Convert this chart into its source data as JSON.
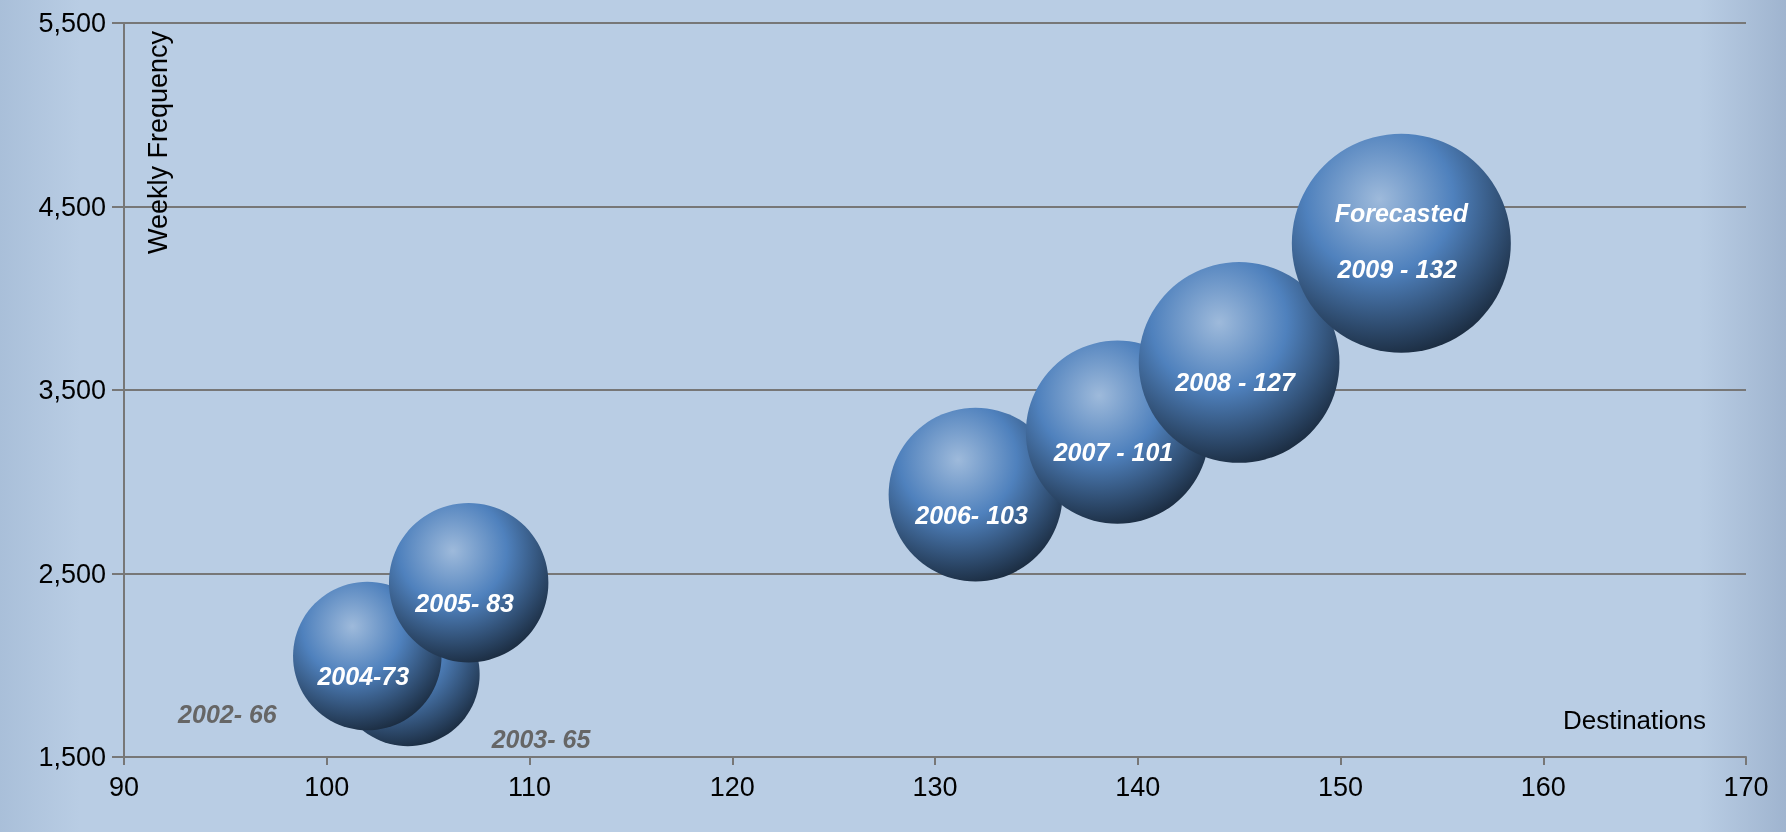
{
  "chart_data": {
    "type": "bubble",
    "xlabel": "Destinations",
    "ylabel": "Weekly Frequency",
    "x": [
      104,
      102,
      107,
      132,
      139,
      145,
      153
    ],
    "values": [
      1950,
      2050,
      2450,
      2930,
      3270,
      3650,
      4300
    ],
    "sizes": [
      0.43,
      0.46,
      0.53,
      0.63,
      0.7,
      0.84,
      1
    ],
    "color": "#4f81bd",
    "xlim": [
      90,
      170
    ],
    "xticks": [
      90,
      100,
      110,
      120,
      130,
      140,
      150,
      160,
      170
    ],
    "ylim": [
      1500,
      5500
    ],
    "yticks": [
      {
        "value": 1500,
        "label": "1,500"
      },
      {
        "value": 2500,
        "label": "2,500"
      },
      {
        "value": 3500,
        "label": "3,500"
      },
      {
        "value": 4500,
        "label": "4,500"
      },
      {
        "value": 5500,
        "label": "5,500"
      }
    ],
    "grid": "y",
    "value_labels": [
      "2003- 65",
      "2004-73",
      "2005- 83",
      "2006- 103",
      "2007 - 101",
      "2008 - 127",
      "2009 - 132"
    ],
    "annotations": [
      "2002- 66",
      "Forecasted"
    ]
  }
}
